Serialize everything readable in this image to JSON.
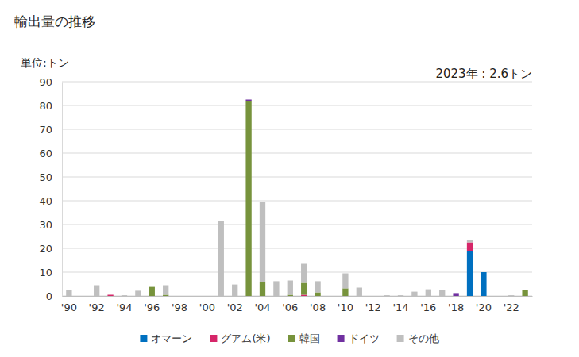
{
  "chart_data": {
    "type": "bar",
    "stacked": true,
    "title": "輸出量の推移",
    "y_label": "単位:トン",
    "annotations": [
      "2023年 : 2.6トン"
    ],
    "categories": [
      "'90",
      null,
      "'92",
      null,
      "'94",
      null,
      "'96",
      null,
      "'98",
      null,
      "'00",
      null,
      "'02",
      null,
      "'04",
      null,
      "'06",
      null,
      "'08",
      null,
      "'10",
      null,
      "'12",
      null,
      "'14",
      null,
      "'16",
      null,
      "'18",
      null,
      "'20",
      null,
      "'22",
      null
    ],
    "series": [
      {
        "name": "オマーン",
        "color": "#0070c0",
        "values": [
          0,
          0,
          0,
          0,
          0,
          0,
          0,
          0,
          0,
          0,
          0,
          0,
          0,
          0,
          0,
          0,
          0,
          0,
          0,
          0,
          0,
          0,
          0,
          0,
          0,
          0,
          0,
          0,
          0,
          19,
          10,
          0,
          0,
          0
        ]
      },
      {
        "name": "グアム(米)",
        "color": "#d62669",
        "values": [
          0,
          0,
          0,
          0.5,
          0,
          0,
          0,
          0,
          0,
          0,
          0,
          0,
          0,
          0,
          0,
          0,
          0,
          0.5,
          0,
          0,
          0,
          0,
          0,
          0,
          0,
          0,
          0,
          0,
          0,
          3.5,
          0,
          0,
          0,
          0
        ]
      },
      {
        "name": "韓国",
        "color": "#77933c",
        "values": [
          0,
          0,
          0,
          0,
          0,
          0,
          3.8,
          0.5,
          0,
          0,
          0,
          0,
          0,
          82,
          6,
          0,
          0.5,
          5,
          1.5,
          0,
          3.2,
          0,
          0,
          0,
          0,
          0,
          0,
          0,
          0,
          0,
          0,
          0,
          0,
          2.6
        ]
      },
      {
        "name": "ドイツ",
        "color": "#7030a0",
        "values": [
          0,
          0,
          0,
          0,
          0,
          0,
          0,
          0,
          0,
          0,
          0,
          0,
          0,
          0.5,
          0,
          0,
          0,
          0,
          0,
          0,
          0,
          0,
          0,
          0,
          0,
          0,
          0,
          0,
          1.2,
          0,
          0,
          0,
          0,
          0
        ]
      },
      {
        "name": "その他",
        "color": "#bfbfbf",
        "values": [
          2.5,
          0,
          4.5,
          0,
          0.3,
          2.2,
          0,
          4,
          0,
          0,
          0,
          31.5,
          4.8,
          0,
          33.5,
          6.2,
          6,
          8,
          4.7,
          0,
          6.3,
          3.5,
          0,
          0.3,
          0.3,
          1.8,
          2.8,
          2.5,
          0,
          1,
          0,
          0,
          0.3,
          0
        ]
      }
    ],
    "ylim": [
      0,
      90
    ],
    "yticks": [
      0,
      10,
      20,
      30,
      40,
      50,
      60,
      70,
      80,
      90
    ],
    "grid": true,
    "legend": "bottom"
  }
}
